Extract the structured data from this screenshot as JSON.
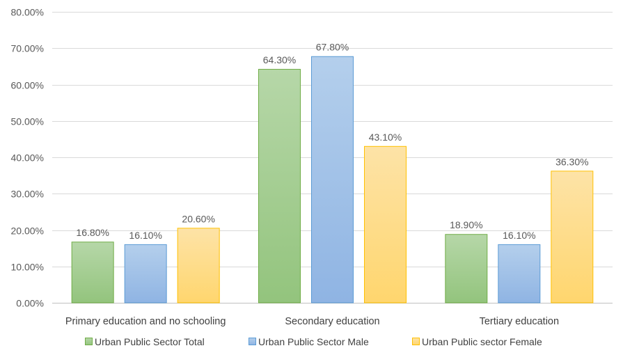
{
  "chart_data": {
    "type": "bar",
    "categories": [
      "Primary education and no schooling",
      "Secondary education",
      "Tertiary education"
    ],
    "series": [
      {
        "name": "Urban Public Sector Total",
        "values": [
          16.8,
          64.3,
          18.9
        ],
        "labels": [
          "16.80%",
          "64.30%",
          "18.90%"
        ],
        "color_top": "#b6d7a8",
        "color_bottom": "#93c47d",
        "stroke": "#70ad47"
      },
      {
        "name": "Urban Public Sector Male",
        "values": [
          16.1,
          67.8,
          16.1
        ],
        "labels": [
          "16.10%",
          "67.80%",
          "16.10%"
        ],
        "color_top": "#b4cfec",
        "color_bottom": "#8fb4e3",
        "stroke": "#5b9bd5"
      },
      {
        "name": "Urban Public sector Female",
        "values": [
          20.6,
          43.1,
          36.3
        ],
        "labels": [
          "20.60%",
          "43.10%",
          "36.30%"
        ],
        "color_top": "#fde3a7",
        "color_bottom": "#ffd66e",
        "stroke": "#ffc000"
      }
    ],
    "yticks": [
      "0.00%",
      "10.00%",
      "20.00%",
      "30.00%",
      "40.00%",
      "50.00%",
      "60.00%",
      "70.00%",
      "80.00%"
    ],
    "ylim": [
      0,
      80
    ],
    "grid": true,
    "legend": "bottom",
    "title": "",
    "xlabel": "",
    "ylabel": ""
  }
}
